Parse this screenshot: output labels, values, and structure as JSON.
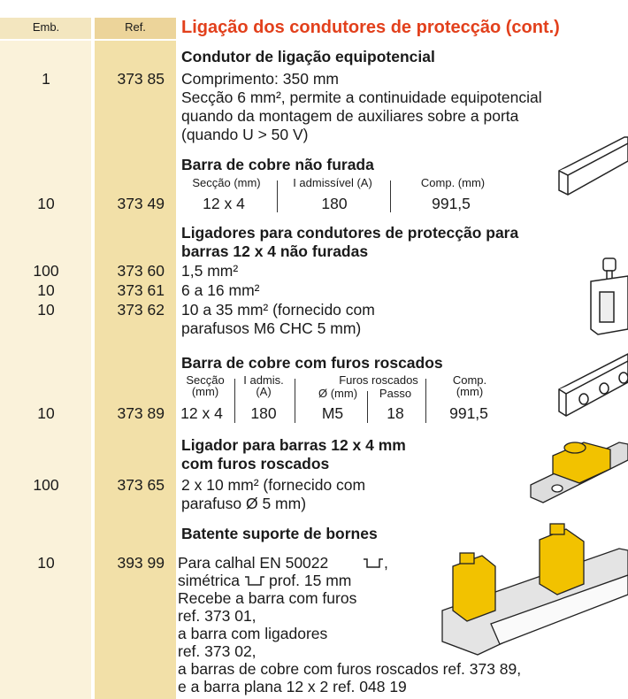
{
  "header": {
    "emb": "Emb.",
    "ref": "Ref.",
    "title": "Ligação dos condutores de protecção (cont.)"
  },
  "sections": [
    {
      "title": [
        "Condutor de ligação equipotencial"
      ],
      "rows": [
        {
          "emb": "1",
          "ref": "373 85"
        }
      ],
      "text": [
        "Comprimento: 350 mm",
        "Secção 6 mm², permite a continuidade equipotencial",
        "quando da montagem de auxiliares sobre a porta",
        "(quando U > 50 V)"
      ]
    },
    {
      "title": [
        "Barra de cobre não furada"
      ],
      "rows": [
        {
          "emb": "10",
          "ref": "373 49"
        }
      ],
      "spec": {
        "headers": [
          [
            "Secção (mm)"
          ],
          [
            "I admissível (A)"
          ],
          [
            "Comp. (mm)"
          ]
        ],
        "values": [
          "12 x 4",
          "180",
          "991,5"
        ]
      }
    },
    {
      "title": [
        "Ligadores para condutores de protecção para",
        "barras 12 x 4 não furadas"
      ],
      "rows": [
        {
          "emb": "100",
          "ref": "373 60",
          "text": [
            "1,5 mm²"
          ]
        },
        {
          "emb": "10",
          "ref": "373 61",
          "text": [
            "6 a 16 mm²"
          ]
        },
        {
          "emb": "10",
          "ref": "373 62",
          "text": [
            "10 a 35 mm² (fornecido com",
            "parafusos M6 CHC 5 mm)"
          ]
        }
      ]
    },
    {
      "title": [
        "Barra de cobre com furos roscados"
      ],
      "rows": [
        {
          "emb": "10",
          "ref": "373 89"
        }
      ],
      "spec": {
        "group": "Furos roscados",
        "headers": [
          [
            "Secção",
            "(mm)"
          ],
          [
            "I admis.",
            "(A)"
          ],
          [
            "Ø (mm)"
          ],
          [
            "Passo"
          ],
          [
            "Comp.",
            "(mm)"
          ]
        ],
        "values": [
          "12 x 4",
          "180",
          "M5",
          "18",
          "991,5"
        ]
      }
    },
    {
      "title": [
        "Ligador para barras 12 x 4 mm",
        "com furos roscados"
      ],
      "rows": [
        {
          "emb": "100",
          "ref": "373 65",
          "text": [
            "2 x 10 mm² (fornecido com",
            "parafuso Ø 5 mm)"
          ]
        }
      ]
    },
    {
      "title": [
        "Batente suporte de bornes"
      ],
      "rows": [
        {
          "emb": "10",
          "ref": "393 99"
        }
      ],
      "text": [
        "Para calhal EN 50022",
        ",",
        "simétrica",
        "prof. 15 mm",
        "Recebe a barra com furos",
        "ref. 373 01,",
        "a barra com ligadores",
        "ref. 373 02,",
        "a barras de cobre com furos roscados ref. 373 89,",
        "e a barra plana 12 x 2 ref. 048 19"
      ]
    }
  ]
}
